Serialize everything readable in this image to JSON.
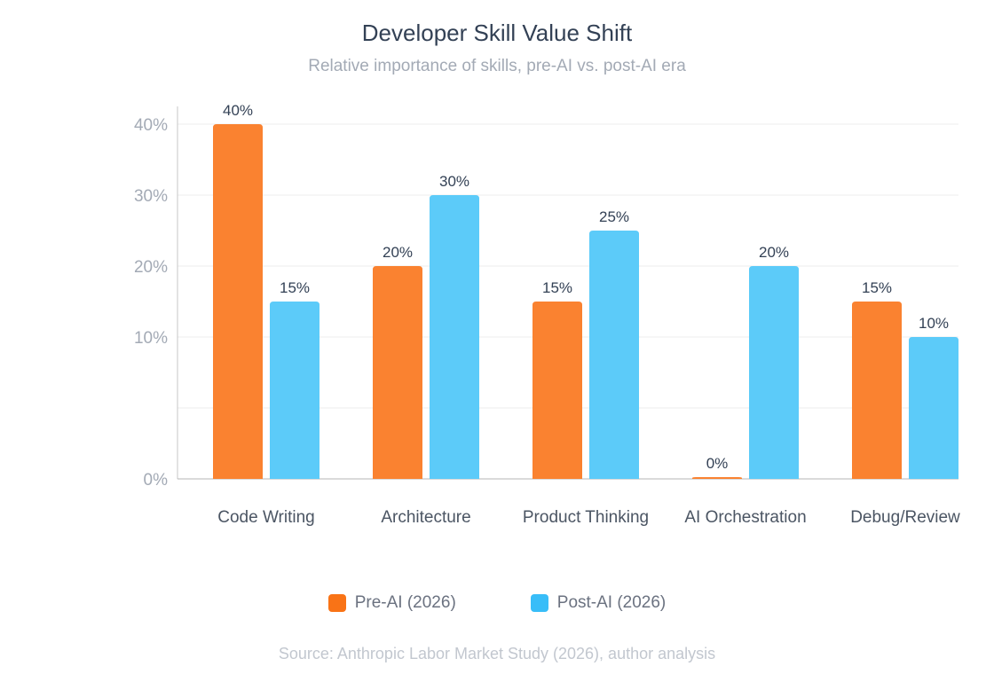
{
  "chart_data": {
    "type": "bar",
    "title": "Developer Skill Value Shift",
    "subtitle": "Relative importance of skills, pre-AI vs. post-AI era",
    "categories": [
      "Code Writing",
      "Architecture",
      "Product Thinking",
      "AI Orchestration",
      "Debug/Review"
    ],
    "series": [
      {
        "name": "Pre-AI (2026)",
        "color": "#f97316",
        "values": [
          40,
          20,
          15,
          0,
          15
        ]
      },
      {
        "name": "Post-AI (2026)",
        "color": "#38bdf8",
        "values": [
          15,
          30,
          25,
          20,
          10
        ]
      }
    ],
    "yticks": [
      0,
      10,
      20,
      30,
      40
    ],
    "ytick_format": "%",
    "ylim": [
      0,
      40
    ],
    "grid": true,
    "legend": "bottom",
    "source": "Source: Anthropic Labor Market Study (2026), author analysis"
  }
}
